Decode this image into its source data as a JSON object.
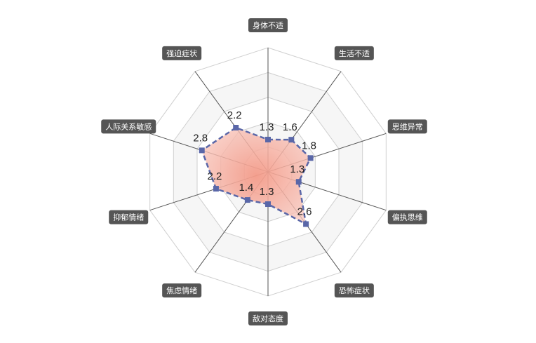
{
  "chart_data": {
    "type": "radar",
    "categories": [
      "身体不适",
      "生活不适",
      "思维异常",
      "偏执思维",
      "恐怖症状",
      "敌对态度",
      "焦虑情绪",
      "抑郁情绪",
      "人际关系敏感",
      "强迫症状"
    ],
    "values": [
      1.3,
      1.6,
      1.8,
      1.3,
      2.6,
      1.3,
      1.4,
      2.2,
      2.8,
      2.2
    ],
    "rlim": [
      0,
      5
    ],
    "rticks": [
      1,
      2,
      3,
      4,
      5
    ],
    "color": "#5a67a8",
    "grid": true
  }
}
